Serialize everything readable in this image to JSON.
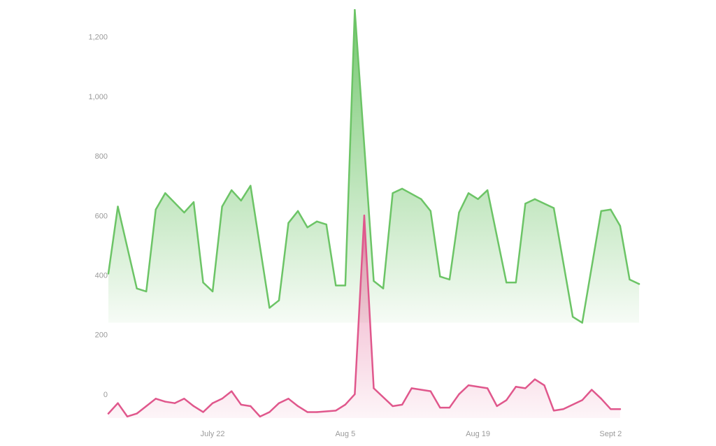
{
  "chart_data": {
    "type": "area",
    "title": "",
    "xlabel": "",
    "ylabel": "",
    "ylim": [
      -80,
      1300
    ],
    "yticks": [
      0,
      200,
      400,
      600,
      800,
      1000,
      1200
    ],
    "ytick_labels": [
      "0",
      "200",
      "400",
      "600",
      "800",
      "1,000",
      "1,200"
    ],
    "xticks": [
      {
        "x": "2024-07-22",
        "label": "July 22"
      },
      {
        "x": "2024-08-05",
        "label": "Aug 5"
      },
      {
        "x": "2024-08-19",
        "label": "Aug 19"
      },
      {
        "x": "2024-09-02",
        "label": "Sept 2"
      }
    ],
    "grid": false,
    "legend": "none",
    "series": [
      {
        "color": "#6cc466",
        "points": [
          [
            "2024-07-11",
            405
          ],
          [
            "2024-07-12",
            630
          ],
          [
            "2024-07-14",
            355
          ],
          [
            "2024-07-15",
            345
          ],
          [
            "2024-07-16",
            620
          ],
          [
            "2024-07-17",
            675
          ],
          [
            "2024-07-19",
            610
          ],
          [
            "2024-07-20",
            645
          ],
          [
            "2024-07-21",
            375
          ],
          [
            "2024-07-22",
            345
          ],
          [
            "2024-07-23",
            630
          ],
          [
            "2024-07-24",
            685
          ],
          [
            "2024-07-25",
            650
          ],
          [
            "2024-07-26",
            700
          ],
          [
            "2024-07-28",
            290
          ],
          [
            "2024-07-29",
            315
          ],
          [
            "2024-07-30",
            575
          ],
          [
            "2024-07-31",
            615
          ],
          [
            "2024-08-01",
            560
          ],
          [
            "2024-08-02",
            580
          ],
          [
            "2024-08-03",
            570
          ],
          [
            "2024-08-04",
            365
          ],
          [
            "2024-08-05",
            365
          ],
          [
            "2024-08-06",
            1290
          ],
          [
            "2024-08-08",
            380
          ],
          [
            "2024-08-09",
            355
          ],
          [
            "2024-08-10",
            675
          ],
          [
            "2024-08-11",
            690
          ],
          [
            "2024-08-13",
            655
          ],
          [
            "2024-08-14",
            615
          ],
          [
            "2024-08-15",
            395
          ],
          [
            "2024-08-16",
            385
          ],
          [
            "2024-08-17",
            610
          ],
          [
            "2024-08-18",
            675
          ],
          [
            "2024-08-19",
            655
          ],
          [
            "2024-08-20",
            685
          ],
          [
            "2024-08-22",
            375
          ],
          [
            "2024-08-23",
            375
          ],
          [
            "2024-08-24",
            640
          ],
          [
            "2024-08-25",
            655
          ],
          [
            "2024-08-27",
            625
          ],
          [
            "2024-08-29",
            260
          ],
          [
            "2024-08-30",
            240
          ],
          [
            "2024-09-01",
            615
          ],
          [
            "2024-09-02",
            620
          ],
          [
            "2024-09-03",
            565
          ],
          [
            "2024-09-04",
            385
          ],
          [
            "2024-09-05",
            370
          ]
        ]
      },
      {
        "color": "#e0578c",
        "points": [
          [
            "2024-07-11",
            -65
          ],
          [
            "2024-07-12",
            -30
          ],
          [
            "2024-07-13",
            -75
          ],
          [
            "2024-07-14",
            -65
          ],
          [
            "2024-07-15",
            -40
          ],
          [
            "2024-07-16",
            -15
          ],
          [
            "2024-07-17",
            -25
          ],
          [
            "2024-07-18",
            -30
          ],
          [
            "2024-07-19",
            -15
          ],
          [
            "2024-07-20",
            -40
          ],
          [
            "2024-07-21",
            -60
          ],
          [
            "2024-07-22",
            -30
          ],
          [
            "2024-07-23",
            -15
          ],
          [
            "2024-07-24",
            10
          ],
          [
            "2024-07-25",
            -35
          ],
          [
            "2024-07-26",
            -40
          ],
          [
            "2024-07-27",
            -75
          ],
          [
            "2024-07-28",
            -60
          ],
          [
            "2024-07-29",
            -30
          ],
          [
            "2024-07-30",
            -15
          ],
          [
            "2024-07-31",
            -40
          ],
          [
            "2024-08-01",
            -60
          ],
          [
            "2024-08-02",
            -60
          ],
          [
            "2024-08-04",
            -55
          ],
          [
            "2024-08-05",
            -35
          ],
          [
            "2024-08-06",
            0
          ],
          [
            "2024-08-07",
            600
          ],
          [
            "2024-08-08",
            20
          ],
          [
            "2024-08-10",
            -40
          ],
          [
            "2024-08-11",
            -35
          ],
          [
            "2024-08-12",
            20
          ],
          [
            "2024-08-14",
            10
          ],
          [
            "2024-08-15",
            -45
          ],
          [
            "2024-08-16",
            -45
          ],
          [
            "2024-08-17",
            0
          ],
          [
            "2024-08-18",
            30
          ],
          [
            "2024-08-19",
            25
          ],
          [
            "2024-08-20",
            20
          ],
          [
            "2024-08-21",
            -40
          ],
          [
            "2024-08-22",
            -20
          ],
          [
            "2024-08-23",
            25
          ],
          [
            "2024-08-24",
            20
          ],
          [
            "2024-08-25",
            50
          ],
          [
            "2024-08-26",
            30
          ],
          [
            "2024-08-27",
            -55
          ],
          [
            "2024-08-28",
            -50
          ],
          [
            "2024-08-30",
            -20
          ],
          [
            "2024-08-31",
            15
          ],
          [
            "2024-09-01",
            -15
          ],
          [
            "2024-09-02",
            -50
          ],
          [
            "2024-09-03",
            -50
          ]
        ]
      }
    ]
  }
}
